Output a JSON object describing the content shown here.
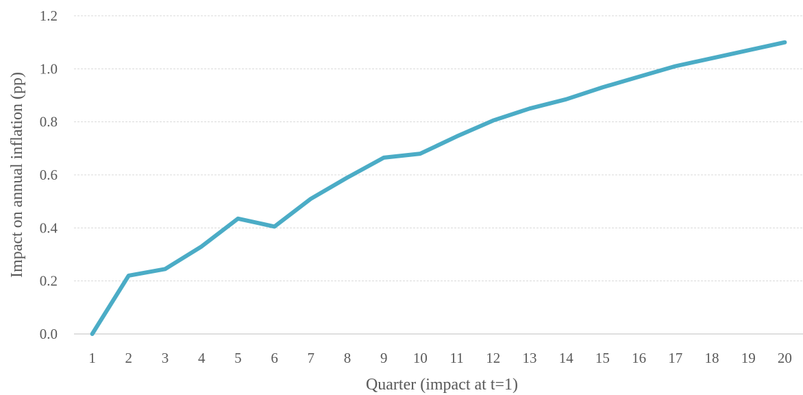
{
  "chart_data": {
    "type": "line",
    "title": "",
    "xlabel": "Quarter (impact at t=1)",
    "ylabel": "Impact on annual inflation (pp)",
    "categories": [
      "1",
      "2",
      "3",
      "4",
      "5",
      "6",
      "7",
      "8",
      "9",
      "10",
      "11",
      "12",
      "13",
      "14",
      "15",
      "16",
      "17",
      "18",
      "19",
      "20"
    ],
    "series": [
      {
        "values": [
          0.0,
          0.22,
          0.245,
          0.33,
          0.435,
          0.405,
          0.51,
          0.59,
          0.665,
          0.68,
          0.745,
          0.805,
          0.85,
          0.885,
          0.93,
          0.97,
          1.01,
          1.04,
          1.07,
          1.1
        ]
      }
    ],
    "ylim": [
      0.0,
      1.2
    ],
    "yticks": [
      "0.0",
      "0.2",
      "0.4",
      "0.6",
      "0.8",
      "1.0",
      "1.2"
    ],
    "grid": true,
    "legend": "none",
    "colors": {
      "line": "#4bacc6",
      "grid": "#d9d9d9",
      "text": "#595959"
    }
  }
}
